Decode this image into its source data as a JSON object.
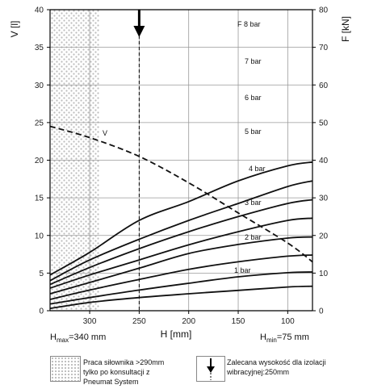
{
  "chart_data": {
    "type": "line",
    "xlabel": "H [mm]",
    "ylabel_left": "V [l]",
    "ylabel_right": "F [kN]",
    "x_ticks": [
      300,
      250,
      200,
      150,
      100
    ],
    "x_range": [
      340,
      75
    ],
    "y_left_range": [
      0,
      40
    ],
    "y_left_ticks": [
      0,
      5,
      10,
      15,
      20,
      25,
      30,
      35,
      40
    ],
    "y_right_range": [
      0,
      80
    ],
    "y_right_ticks": [
      0,
      10,
      20,
      30,
      40,
      50,
      60,
      70,
      80
    ],
    "grid": true,
    "series": [
      {
        "name": "1 bar",
        "axis": "right",
        "x": [
          340,
          300,
          250,
          200,
          150,
          100,
          75
        ],
        "y": [
          0.6,
          2.2,
          3.5,
          4.5,
          5.4,
          6.3,
          6.5
        ]
      },
      {
        "name": "2 bar",
        "axis": "right",
        "x": [
          340,
          300,
          250,
          200,
          150,
          100,
          75
        ],
        "y": [
          1.8,
          3.5,
          5.5,
          7.3,
          9.0,
          10.1,
          10.3
        ]
      },
      {
        "name": "3 bar",
        "axis": "right",
        "x": [
          340,
          300,
          250,
          200,
          150,
          100,
          75
        ],
        "y": [
          3.0,
          5.5,
          8.3,
          11.0,
          13.0,
          14.5,
          14.8
        ]
      },
      {
        "name": "4 bar",
        "axis": "right",
        "x": [
          340,
          300,
          250,
          200,
          150,
          100,
          75
        ],
        "y": [
          4.5,
          7.5,
          11.3,
          15.2,
          17.6,
          19.3,
          19.6
        ]
      },
      {
        "name": "5 bar",
        "axis": "right",
        "x": [
          340,
          300,
          250,
          200,
          150,
          100,
          75
        ],
        "y": [
          6.0,
          9.5,
          13.5,
          17.5,
          21.0,
          24.0,
          24.6
        ]
      },
      {
        "name": "6 bar",
        "axis": "right",
        "x": [
          340,
          300,
          250,
          200,
          150,
          100,
          75
        ],
        "y": [
          7.0,
          11.5,
          16.5,
          21.0,
          25.0,
          28.5,
          29.5
        ]
      },
      {
        "name": "7 bar",
        "axis": "right",
        "x": [
          340,
          300,
          250,
          200,
          150,
          100,
          75
        ],
        "y": [
          8.0,
          13.5,
          19.0,
          24.0,
          28.5,
          33.0,
          34.5
        ]
      },
      {
        "name": "F 8 bar",
        "axis": "right",
        "x": [
          340,
          300,
          250,
          200,
          150,
          100,
          75
        ],
        "y": [
          9.5,
          15.5,
          24.0,
          29.0,
          34.5,
          38.5,
          39.5
        ]
      },
      {
        "name": "V",
        "axis": "left",
        "style": "dashed",
        "x": [
          340,
          300,
          250,
          200,
          150,
          100,
          75
        ],
        "y": [
          24.5,
          23.0,
          20.5,
          17.0,
          13.0,
          9.0,
          6.5
        ]
      }
    ],
    "hmax_label": "=340 mm",
    "hmin_label": "=75 mm",
    "hmax_prefix": "H",
    "hmax_sub": "max",
    "hmin_prefix": "H",
    "hmin_sub": "min",
    "recommended_height": 250
  },
  "legend": {
    "hatched_text": "Praca siłownika >290mm tylko po konsultacji z Pneumat System",
    "arrow_text": "Zalecana wysokość dla izolacji wibracyjnej:250mm"
  },
  "colors": {
    "line": "#111111",
    "grid": "#999999",
    "hatch": "#cccccc"
  }
}
